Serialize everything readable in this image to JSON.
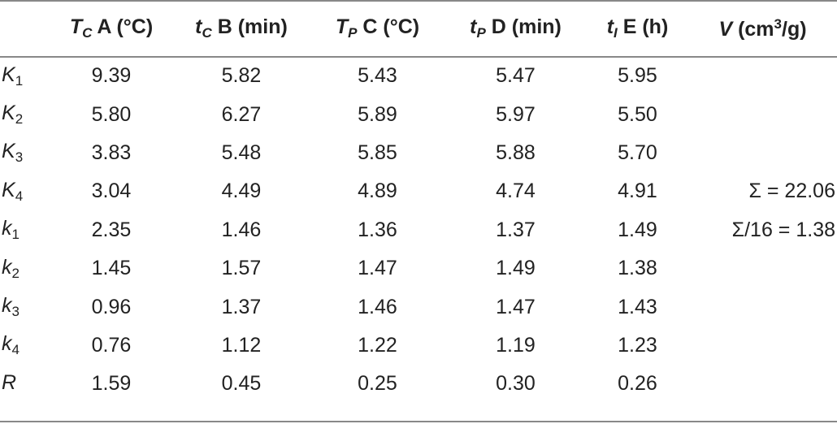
{
  "headers": [
    {
      "sym": "T",
      "sub": "C",
      "label": " A (°C)"
    },
    {
      "sym": "t",
      "sub": "C",
      "label": " B (min)"
    },
    {
      "sym": "T",
      "sub": "P",
      "label": " C (°C)"
    },
    {
      "sym": "t",
      "sub": "P",
      "label": " D (min)"
    },
    {
      "sym": "t",
      "sub": "I",
      "label": " E (h)"
    },
    {
      "sym": "V",
      "label_pre": " (cm",
      "sup": "3",
      "label_post": "/g)"
    }
  ],
  "rows": [
    {
      "sym": "K",
      "sub": "1",
      "values": [
        "9.39",
        "5.82",
        "5.43",
        "5.47",
        "5.95"
      ],
      "extra": ""
    },
    {
      "sym": "K",
      "sub": "2",
      "values": [
        "5.80",
        "6.27",
        "5.89",
        "5.97",
        "5.50"
      ],
      "extra": ""
    },
    {
      "sym": "K",
      "sub": "3",
      "values": [
        "3.83",
        "5.48",
        "5.85",
        "5.88",
        "5.70"
      ],
      "extra": ""
    },
    {
      "sym": "K",
      "sub": "4",
      "values": [
        "3.04",
        "4.49",
        "4.89",
        "4.74",
        "4.91"
      ],
      "extra": "Σ = 22.06"
    },
    {
      "sym": "k",
      "sub": "1",
      "values": [
        "2.35",
        "1.46",
        "1.36",
        "1.37",
        "1.49"
      ],
      "extra": "Σ/16 = 1.38"
    },
    {
      "sym": "k",
      "sub": "2",
      "values": [
        "1.45",
        "1.57",
        "1.47",
        "1.49",
        "1.38"
      ],
      "extra": ""
    },
    {
      "sym": "k",
      "sub": "3",
      "values": [
        "0.96",
        "1.37",
        "1.46",
        "1.47",
        "1.43"
      ],
      "extra": ""
    },
    {
      "sym": "k",
      "sub": "4",
      "values": [
        "0.76",
        "1.12",
        "1.22",
        "1.19",
        "1.23"
      ],
      "extra": ""
    },
    {
      "sym": "R",
      "sub": "",
      "values": [
        "1.59",
        "0.45",
        "0.25",
        "0.30",
        "0.26"
      ],
      "extra": ""
    }
  ]
}
